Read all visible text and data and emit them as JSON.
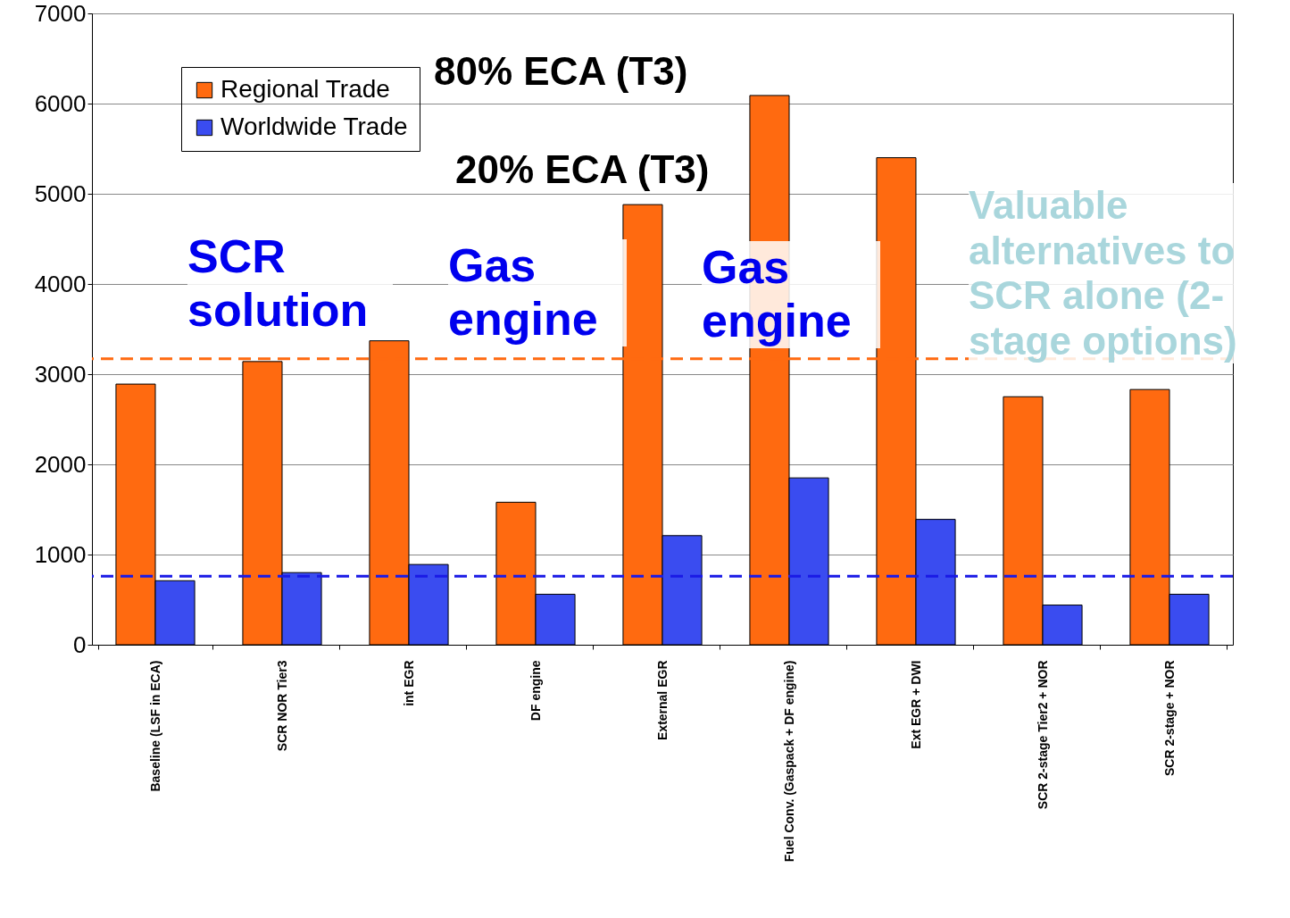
{
  "chart_data": {
    "type": "bar",
    "categories": [
      "Baseline (LSF in ECA)",
      "SCR NOR Tier3",
      "int EGR",
      "DF engine",
      "External EGR",
      "Fuel Conv. (Gaspack + DF engine)",
      "Ext EGR + DWI",
      "SCR 2-stage Tier2 + NOR",
      "SCR 2-stage + NOR"
    ],
    "series": [
      {
        "name": "Regional Trade",
        "color": "#ff6a10",
        "values": [
          2890,
          3140,
          3370,
          1580,
          4880,
          6090,
          5400,
          2750,
          2830
        ]
      },
      {
        "name": "Worldwide Trade",
        "color": "#3a4cf0",
        "values": [
          710,
          800,
          890,
          560,
          1210,
          1850,
          1390,
          440,
          560
        ]
      }
    ],
    "ylim": [
      0,
      7000
    ],
    "yticks": [
      0,
      1000,
      2000,
      3000,
      4000,
      5000,
      6000,
      7000
    ],
    "grid": "y",
    "legend": "top left",
    "ref_lines": [
      {
        "axis": "y",
        "value": 3170,
        "color": "#ff6a10",
        "line_style": "dashed"
      },
      {
        "axis": "y",
        "value": 760,
        "color": "#1a1ae6",
        "line_style": "dashed"
      }
    ],
    "annotations": [
      "80% ECA (T3)",
      "20% ECA (T3)",
      "SCR solution",
      "Gas engine",
      "Gas engine",
      "Valuable alternatives to SCR alone (2-stage options)"
    ]
  }
}
